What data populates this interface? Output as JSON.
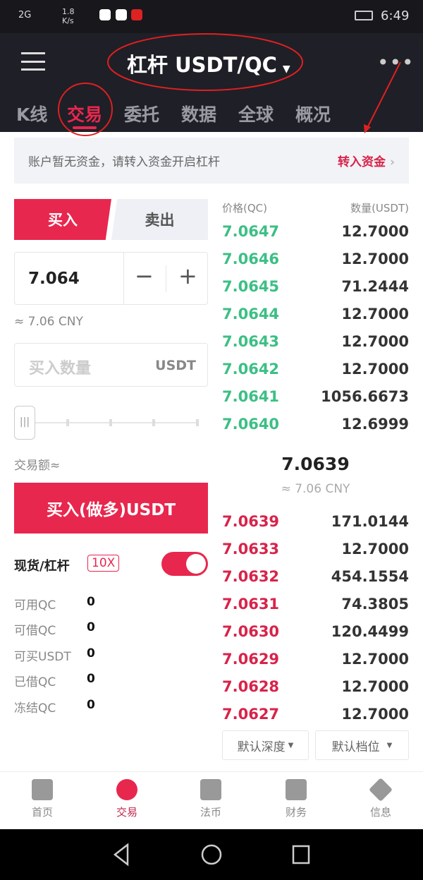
{
  "status": {
    "network": "2G",
    "speed": "1.8 K/s",
    "time": "6:49"
  },
  "header": {
    "title": "杠杆 USDT/QC",
    "tabs": [
      {
        "label": "K线"
      },
      {
        "label": "交易"
      },
      {
        "label": "委托"
      },
      {
        "label": "数据"
      },
      {
        "label": "全球"
      },
      {
        "label": "概况"
      }
    ]
  },
  "notice": {
    "text": "账户暂无资金，请转入资金开启杠杆",
    "action": "转入资金"
  },
  "form": {
    "buy": "买入",
    "sell": "卖出",
    "price": "7.064",
    "cny": "≈ 7.06 CNY",
    "amount_placeholder": "买入数量",
    "amount_unit": "USDT",
    "slider_value": 0,
    "trade_amount_label": "交易额≈",
    "submit": "买入(做多)USDT",
    "mode_spot": "现货/",
    "mode_margin": "杠杆",
    "leverage": "10X",
    "margin_enabled": true
  },
  "balances": [
    {
      "label": "可用QC",
      "value": "0"
    },
    {
      "label": "可借QC",
      "value": "0"
    },
    {
      "label": "可买USDT",
      "value": "0"
    },
    {
      "label": "已借QC",
      "value": "0"
    },
    {
      "label": "冻结QC",
      "value": "0"
    }
  ],
  "orderbook": {
    "price_header": "价格(QC)",
    "qty_header": "数量(USDT)",
    "asks": [
      {
        "p": "7.0647",
        "q": "12.7000"
      },
      {
        "p": "7.0646",
        "q": "12.7000"
      },
      {
        "p": "7.0645",
        "q": "71.2444"
      },
      {
        "p": "7.0644",
        "q": "12.7000"
      },
      {
        "p": "7.0643",
        "q": "12.7000"
      },
      {
        "p": "7.0642",
        "q": "12.7000"
      },
      {
        "p": "7.0641",
        "q": "1056.6673"
      },
      {
        "p": "7.0640",
        "q": "12.6999"
      }
    ],
    "last": "7.0639",
    "last_cny": "≈ 7.06 CNY",
    "bids": [
      {
        "p": "7.0639",
        "q": "171.0144"
      },
      {
        "p": "7.0633",
        "q": "12.7000"
      },
      {
        "p": "7.0632",
        "q": "454.1554"
      },
      {
        "p": "7.0631",
        "q": "74.3805"
      },
      {
        "p": "7.0630",
        "q": "120.4499"
      },
      {
        "p": "7.0629",
        "q": "12.7000"
      },
      {
        "p": "7.0628",
        "q": "12.7000"
      },
      {
        "p": "7.0627",
        "q": "12.7000"
      }
    ],
    "depth": "默认深度",
    "level": "默认档位"
  },
  "nav": [
    {
      "label": "首页",
      "icon": "home-icon"
    },
    {
      "label": "交易",
      "icon": "trade-icon"
    },
    {
      "label": "法币",
      "icon": "fiat-icon"
    },
    {
      "label": "财务",
      "icon": "finance-icon"
    },
    {
      "label": "信息",
      "icon": "info-diamond-icon"
    }
  ],
  "colors": {
    "accent": "#e8274e",
    "ask": "#3cbf85",
    "bid": "#d8234a"
  }
}
